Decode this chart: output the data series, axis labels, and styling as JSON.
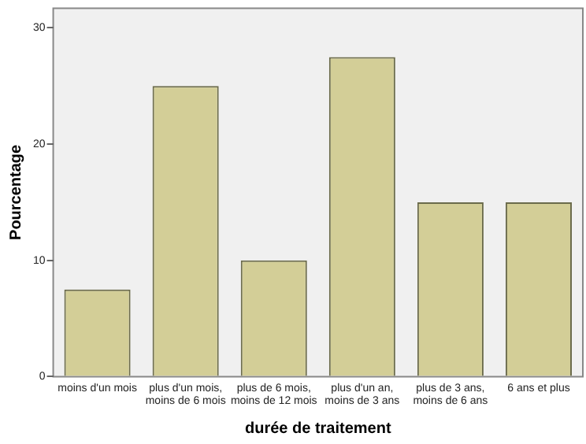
{
  "chart_data": {
    "type": "bar",
    "xlabel": "durée de traitement",
    "ylabel": "Pourcentage",
    "categories": [
      "moins d'un mois",
      "plus d'un mois, moins de 6 mois",
      "plus de 6 mois, moins de 12 mois",
      "plus d'un an, moins de 3 ans",
      "plus de 3 ans, moins de 6 ans",
      "6 ans et plus"
    ],
    "values": [
      7.5,
      25,
      10,
      27.5,
      15,
      15
    ],
    "color": "#d3ce97",
    "ylim": [
      0,
      31.7
    ],
    "yticks": [
      0,
      10,
      20,
      30
    ],
    "grid": false,
    "legend": false
  }
}
